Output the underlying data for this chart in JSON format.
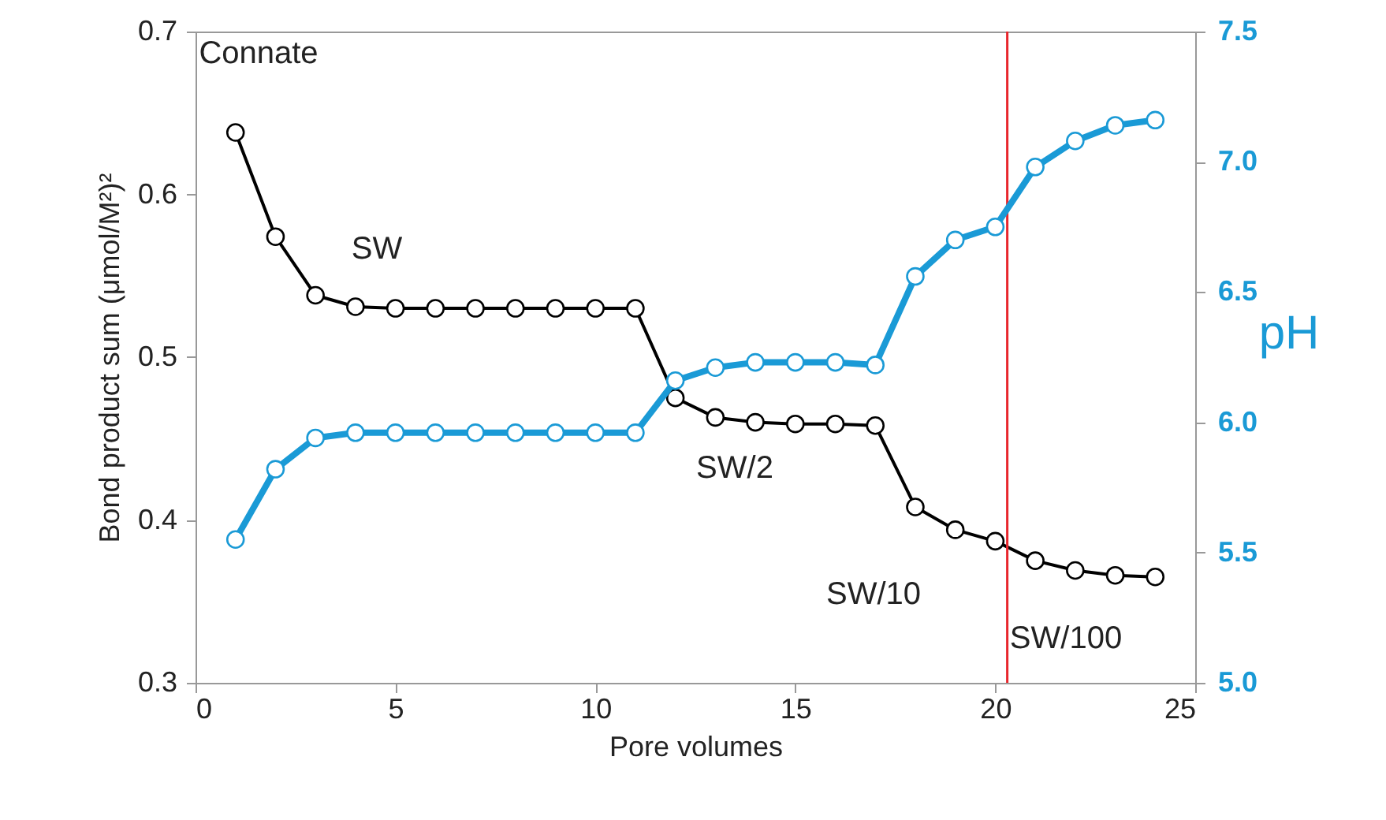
{
  "chart_data": {
    "type": "line",
    "xlabel": "Pore volumes",
    "ylabel": "Bond product sum (μmol/M²)²",
    "y2label": "pH",
    "x": [
      1,
      2,
      3,
      4,
      5,
      6,
      7,
      8,
      9,
      10,
      11,
      12,
      13,
      14,
      15,
      16,
      17,
      18,
      19,
      20,
      21,
      22,
      23,
      24
    ],
    "series": [
      {
        "color": "#000000",
        "values": [
          0.638,
          0.574,
          0.538,
          0.531,
          0.53,
          0.53,
          0.53,
          0.53,
          0.53,
          0.53,
          0.53,
          0.475,
          0.463,
          0.46,
          0.459,
          0.459,
          0.458,
          0.408,
          0.394,
          0.387,
          0.375,
          0.369,
          0.366,
          0.365
        ]
      },
      {
        "color": "#1a9ad6",
        "axis": "y2",
        "values": [
          5.55,
          5.82,
          5.94,
          5.96,
          5.96,
          5.96,
          5.96,
          5.96,
          5.96,
          5.96,
          5.96,
          6.16,
          6.21,
          6.23,
          6.23,
          6.23,
          6.22,
          6.56,
          6.7,
          6.75,
          6.98,
          7.08,
          7.14,
          7.16
        ]
      }
    ],
    "xlim": [
      0,
      25
    ],
    "xticks": [
      0,
      5,
      10,
      15,
      20,
      25
    ],
    "ylim": [
      0.3,
      0.7
    ],
    "yticks": [
      0.3,
      0.4,
      0.5,
      0.6,
      0.7
    ],
    "y2lim": [
      5.0,
      7.5
    ],
    "y2ticks": [
      {
        "value": 5,
        "label": "5.0"
      },
      {
        "value": 5.5,
        "label": "5.5"
      },
      {
        "value": 6,
        "label": "6.0"
      },
      {
        "value": 6.5,
        "label": "6.5"
      },
      {
        "value": 7,
        "label": "7.0"
      },
      {
        "value": 7.5,
        "label": "7.5"
      }
    ],
    "ref_lines": [
      {
        "axis": "x",
        "value": 20.3,
        "color": "#e8262c"
      }
    ],
    "annotations": [
      "Connate",
      "SW",
      "SW/2",
      "SW/10",
      "SW/100"
    ],
    "grid": false,
    "marker": "circle",
    "line_style": "solid"
  }
}
